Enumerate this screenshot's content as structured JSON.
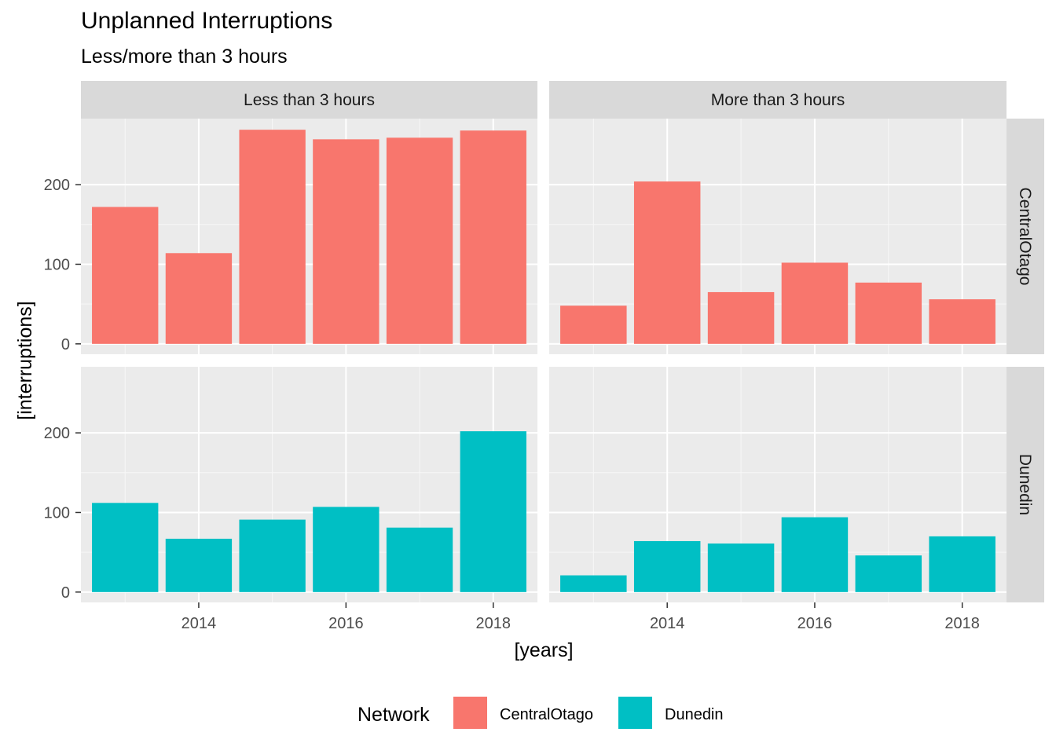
{
  "title": "Unplanned Interruptions",
  "subtitle": "Less/more than 3 hours",
  "chart_data": {
    "type": "bar",
    "title": "Unplanned Interruptions",
    "subtitle": "Less/more than 3 hours",
    "xlabel": "[years]",
    "ylabel": "[interruptions]",
    "x": [
      2013,
      2014,
      2015,
      2016,
      2017,
      2018
    ],
    "x_ticks": [
      2014,
      2016,
      2018
    ],
    "xlim": [
      2012.4,
      2018.6
    ],
    "y_ticks": [
      0,
      100,
      200
    ],
    "ylim": [
      -13,
      283
    ],
    "grid": true,
    "facet_cols": [
      "Less than 3 hours",
      "More than 3 hours"
    ],
    "facet_rows": [
      "CentralOtago",
      "Dunedin"
    ],
    "legend": {
      "title": "Network",
      "position": "bottom",
      "entries": [
        {
          "name": "CentralOtago",
          "color": "#F8766D"
        },
        {
          "name": "Dunedin",
          "color": "#00BFC4"
        }
      ]
    },
    "panels": [
      {
        "col": "Less than 3 hours",
        "row": "CentralOtago",
        "values": [
          172,
          114,
          269,
          257,
          259,
          268
        ]
      },
      {
        "col": "More than 3 hours",
        "row": "CentralOtago",
        "values": [
          48,
          204,
          65,
          102,
          77,
          56
        ]
      },
      {
        "col": "Less than 3 hours",
        "row": "Dunedin",
        "values": [
          112,
          67,
          91,
          107,
          81,
          202
        ]
      },
      {
        "col": "More than 3 hours",
        "row": "Dunedin",
        "values": [
          21,
          64,
          61,
          94,
          46,
          70
        ]
      }
    ]
  }
}
